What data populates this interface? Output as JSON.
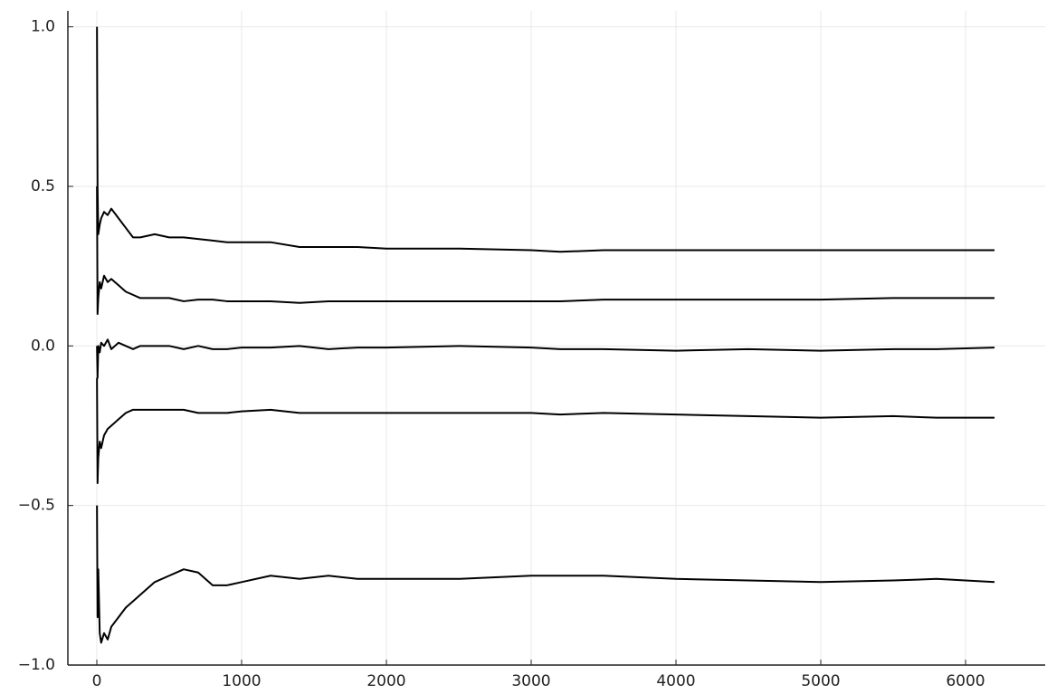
{
  "chart_data": {
    "type": "line",
    "x": [
      1,
      5,
      10,
      20,
      30,
      50,
      75,
      100,
      150,
      200,
      250,
      300,
      400,
      500,
      600,
      700,
      800,
      900,
      1000,
      1200,
      1400,
      1600,
      1800,
      2000,
      2500,
      3000,
      3200,
      3500,
      4000,
      4500,
      5000,
      5500,
      5800,
      6200
    ],
    "series": [
      {
        "color": "#000000",
        "values": [
          1.0,
          0.5,
          0.35,
          0.38,
          0.4,
          0.42,
          0.41,
          0.43,
          0.4,
          0.37,
          0.34,
          0.34,
          0.35,
          0.34,
          0.34,
          0.335,
          0.33,
          0.325,
          0.325,
          0.325,
          0.31,
          0.31,
          0.31,
          0.305,
          0.305,
          0.3,
          0.295,
          0.3,
          0.3,
          0.3,
          0.3,
          0.3,
          0.3,
          0.3
        ]
      },
      {
        "color": "#000000",
        "values": [
          0.5,
          0.1,
          0.15,
          0.2,
          0.18,
          0.22,
          0.2,
          0.21,
          0.19,
          0.17,
          0.16,
          0.15,
          0.15,
          0.15,
          0.14,
          0.145,
          0.145,
          0.14,
          0.14,
          0.14,
          0.135,
          0.14,
          0.14,
          0.14,
          0.14,
          0.14,
          0.14,
          0.145,
          0.145,
          0.145,
          0.145,
          0.15,
          0.15,
          0.15
        ]
      },
      {
        "color": "#000000",
        "values": [
          0.0,
          -0.1,
          0.0,
          -0.02,
          0.01,
          0.0,
          0.02,
          -0.01,
          0.01,
          0.0,
          -0.01,
          0,
          0,
          0,
          -0.01,
          0,
          -0.01,
          -0.01,
          -0.005,
          -0.005,
          0,
          -0.01,
          -0.005,
          -0.005,
          0,
          -0.005,
          -0.01,
          -0.01,
          -0.015,
          -0.01,
          -0.015,
          -0.01,
          -0.01,
          -0.005
        ]
      },
      {
        "color": "#000000",
        "values": [
          -0.1,
          -0.43,
          -0.35,
          -0.3,
          -0.32,
          -0.28,
          -0.26,
          -0.25,
          -0.23,
          -0.21,
          -0.2,
          -0.2,
          -0.2,
          -0.2,
          -0.2,
          -0.21,
          -0.21,
          -0.21,
          -0.205,
          -0.2,
          -0.21,
          -0.21,
          -0.21,
          -0.21,
          -0.21,
          -0.21,
          -0.215,
          -0.21,
          -0.215,
          -0.22,
          -0.225,
          -0.22,
          -0.225,
          -0.225
        ]
      },
      {
        "color": "#000000",
        "values": [
          -0.5,
          -0.85,
          -0.7,
          -0.9,
          -0.93,
          -0.9,
          -0.92,
          -0.88,
          -0.85,
          -0.82,
          -0.8,
          -0.78,
          -0.74,
          -0.72,
          -0.7,
          -0.71,
          -0.75,
          -0.75,
          -0.74,
          -0.72,
          -0.73,
          -0.72,
          -0.73,
          -0.73,
          -0.73,
          -0.72,
          -0.72,
          -0.72,
          -0.73,
          -0.735,
          -0.74,
          -0.735,
          -0.73,
          -0.74
        ]
      }
    ],
    "xlim": [
      -200,
      6550
    ],
    "xticks": [
      0,
      1000,
      2000,
      3000,
      4000,
      5000,
      6000
    ],
    "ylim": [
      -1.0,
      1.05
    ],
    "yticks": [
      {
        "value": -1.0,
        "label": "−1.0"
      },
      {
        "value": -0.5,
        "label": "−0.5"
      },
      {
        "value": 0.0,
        "label": "0.0"
      },
      {
        "value": 0.5,
        "label": "0.5"
      },
      {
        "value": 1.0,
        "label": "1.0"
      }
    ],
    "grid": true
  }
}
